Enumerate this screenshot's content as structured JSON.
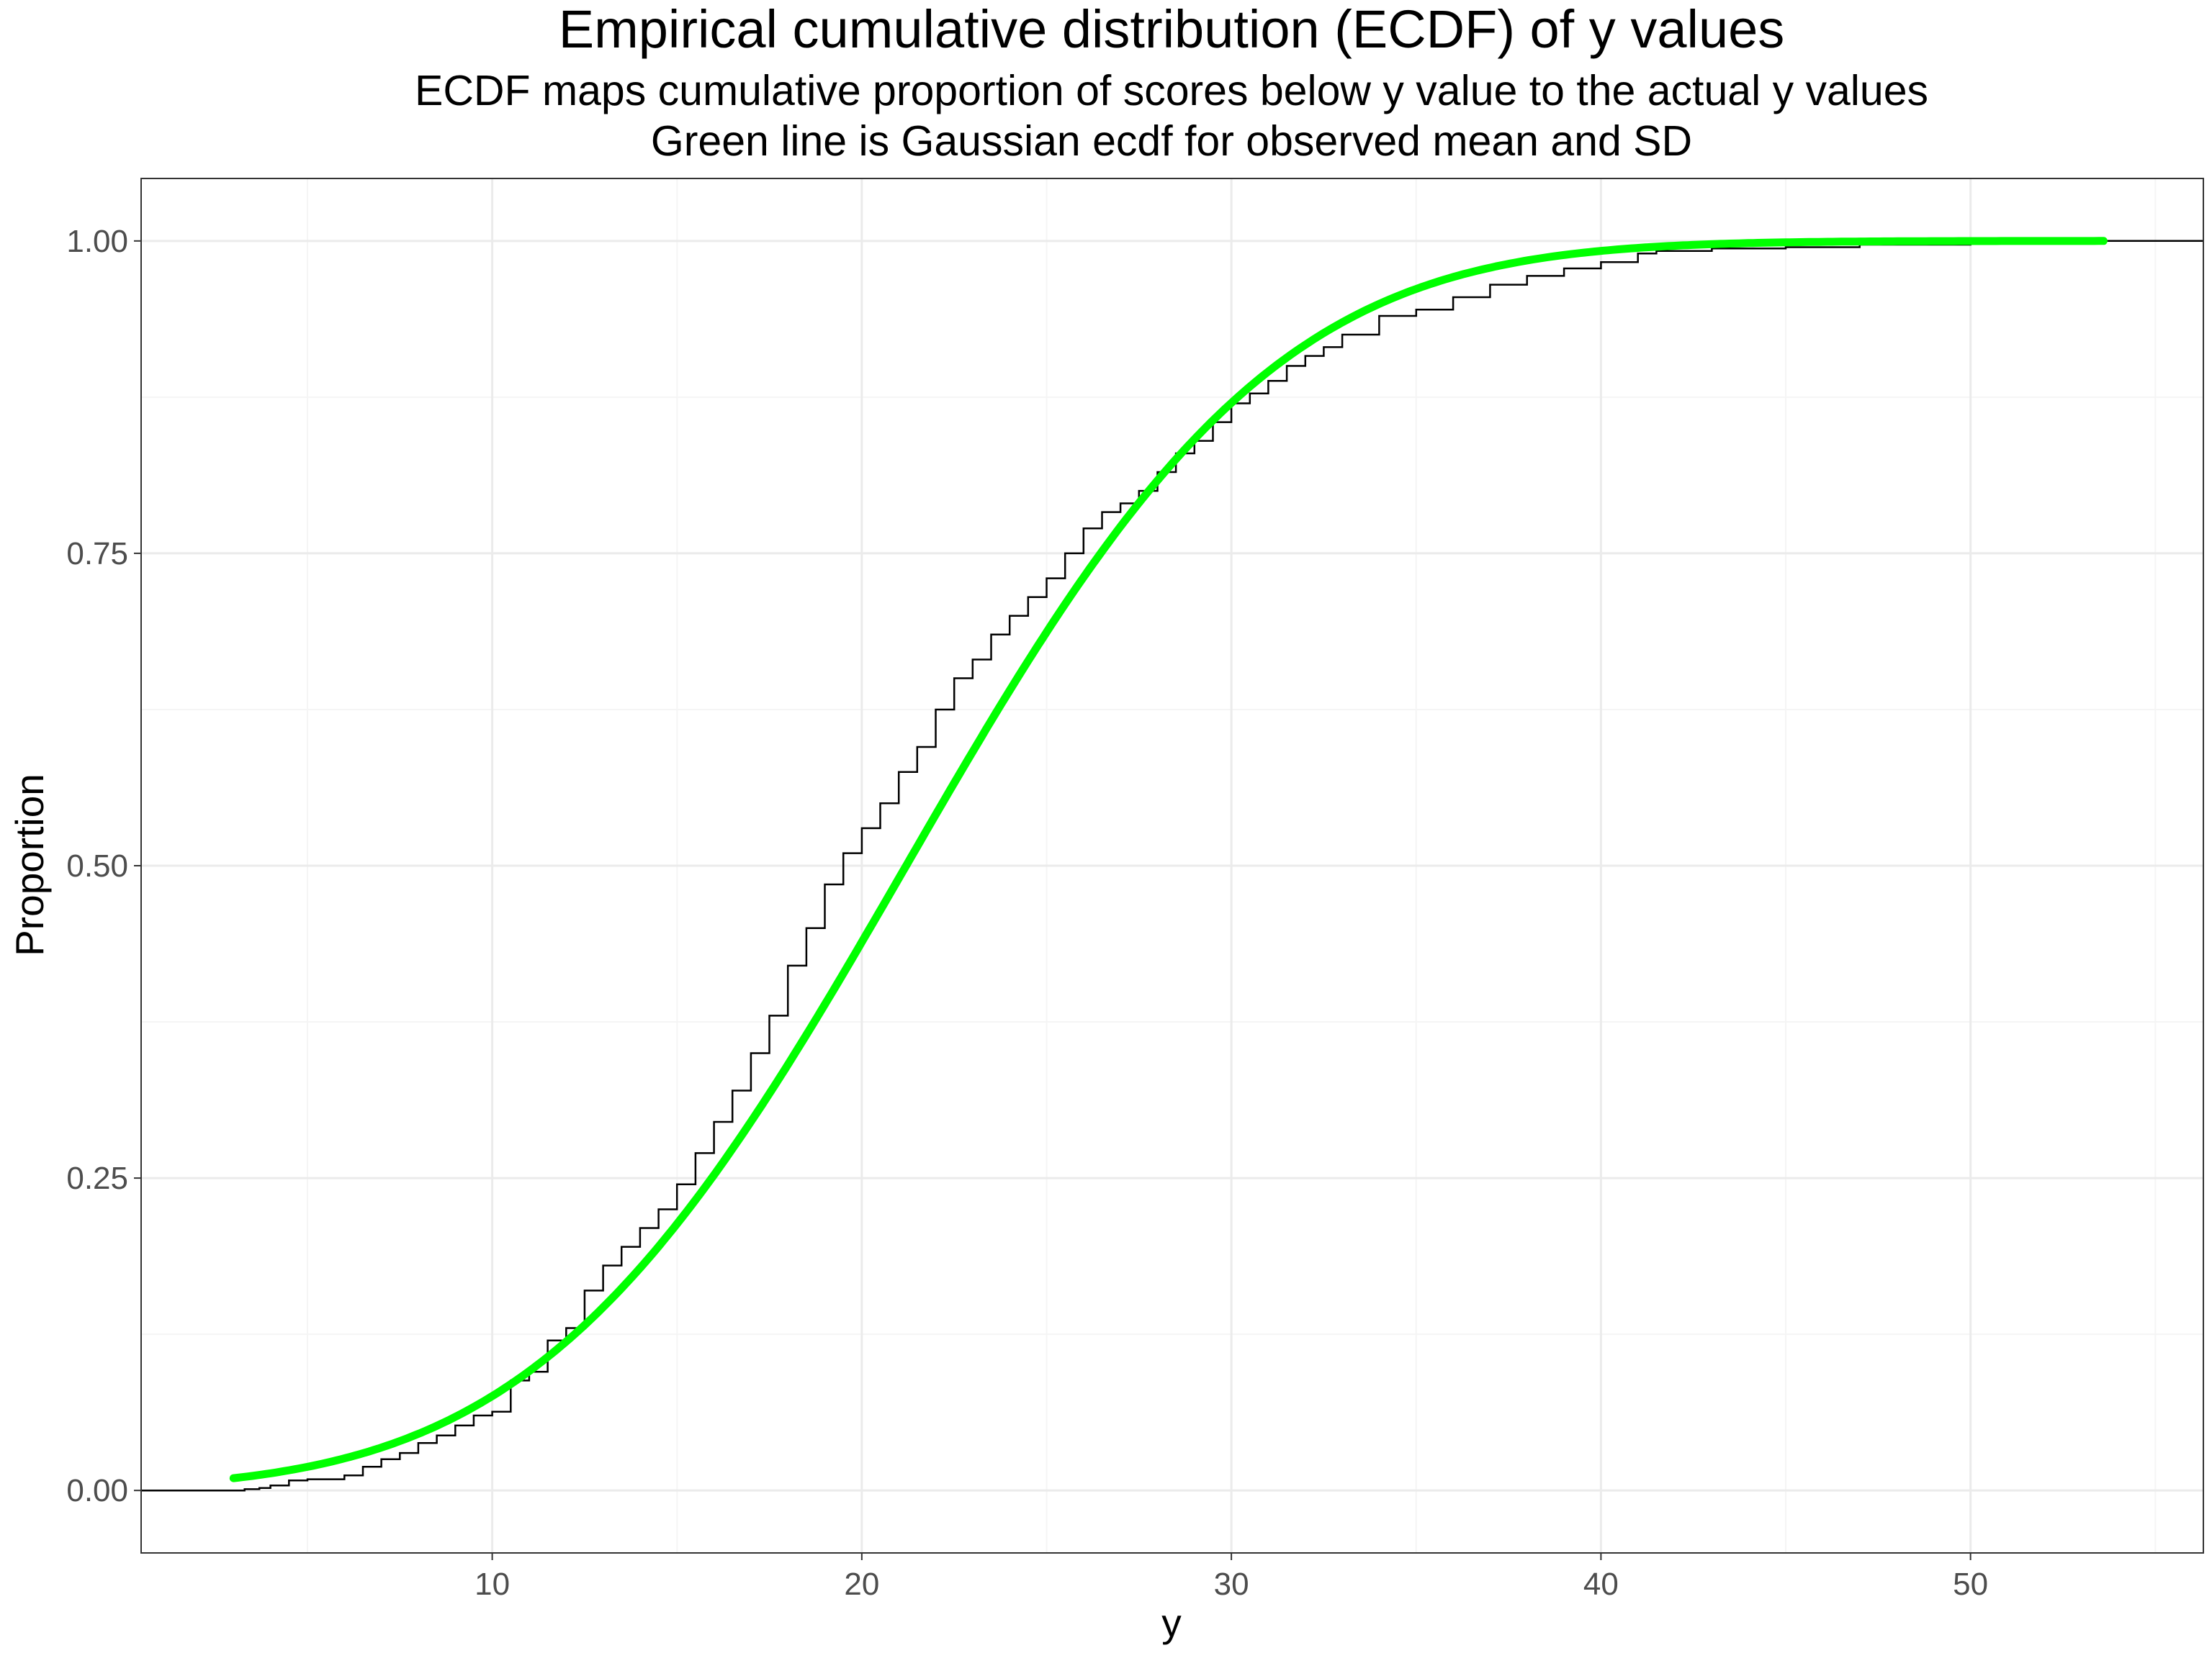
{
  "chart_data": {
    "type": "line",
    "title": "Empirical cumulative distribution (ECDF) of y values",
    "subtitle": [
      "ECDF maps cumulative proportion of scores below y value to the actual y values",
      "Green line is Gaussian ecdf for observed mean and SD"
    ],
    "xlabel": "y",
    "ylabel": "Proportion",
    "xlim": [
      0.5,
      56.3
    ],
    "ylim": [
      -0.05,
      1.05
    ],
    "x_ticks": [
      10,
      20,
      30,
      40,
      50
    ],
    "x_tick_labels": [
      "10",
      "20",
      "30",
      "40",
      "50"
    ],
    "y_ticks": [
      0,
      0.25,
      0.5,
      0.75,
      1
    ],
    "y_tick_labels": [
      "0.00",
      "0.25",
      "0.50",
      "0.75",
      "1.00"
    ],
    "grid": true,
    "colors": {
      "ecdf": "#000000",
      "gaussian": "#00ff00",
      "grid_major": "#ebebeb",
      "grid_minor": "#f5f5f5",
      "panel_border": "#333333"
    },
    "series": [
      {
        "kind": "step",
        "color": "#000000",
        "x": [
          0.5,
          2.9,
          3.3,
          3.7,
          4.0,
          4.5,
          5.0,
          6.0,
          6.5,
          7.0,
          7.5,
          8.0,
          8.5,
          9.0,
          9.5,
          10.0,
          10.5,
          11.0,
          11.5,
          12.0,
          12.5,
          13.0,
          13.5,
          14.0,
          14.5,
          15.0,
          15.5,
          16.0,
          16.5,
          17.0,
          17.5,
          18.0,
          18.5,
          19.0,
          19.5,
          20.0,
          20.5,
          21.0,
          21.5,
          22.0,
          22.5,
          23.0,
          23.5,
          24.0,
          24.5,
          25.0,
          25.5,
          26.0,
          26.5,
          27.0,
          27.5,
          28.0,
          28.5,
          29.0,
          29.5,
          30.0,
          30.5,
          31.0,
          31.5,
          32.0,
          32.5,
          33.0,
          34.0,
          35.0,
          36.0,
          37.0,
          38.0,
          39.0,
          40.0,
          41.0,
          41.5,
          43.0,
          45.0,
          47.0,
          50.0,
          53.6,
          56.3
        ],
        "y": [
          0.0,
          0.0,
          0.001,
          0.002,
          0.004,
          0.008,
          0.009,
          0.012,
          0.019,
          0.025,
          0.03,
          0.038,
          0.044,
          0.052,
          0.06,
          0.063,
          0.088,
          0.095,
          0.12,
          0.13,
          0.16,
          0.18,
          0.195,
          0.21,
          0.225,
          0.245,
          0.27,
          0.295,
          0.32,
          0.35,
          0.38,
          0.42,
          0.45,
          0.485,
          0.51,
          0.53,
          0.55,
          0.575,
          0.595,
          0.625,
          0.65,
          0.665,
          0.685,
          0.7,
          0.715,
          0.73,
          0.75,
          0.77,
          0.783,
          0.79,
          0.8,
          0.815,
          0.83,
          0.84,
          0.855,
          0.87,
          0.878,
          0.888,
          0.9,
          0.908,
          0.915,
          0.925,
          0.94,
          0.945,
          0.955,
          0.965,
          0.972,
          0.978,
          0.983,
          0.99,
          0.992,
          0.994,
          0.995,
          0.997,
          0.999,
          1.0,
          1.0
        ]
      },
      {
        "kind": "gaussian-cdf",
        "color": "#00ff00",
        "mean": 21.2,
        "sd": 7.8,
        "x_range": [
          3.0,
          53.6
        ]
      }
    ]
  }
}
